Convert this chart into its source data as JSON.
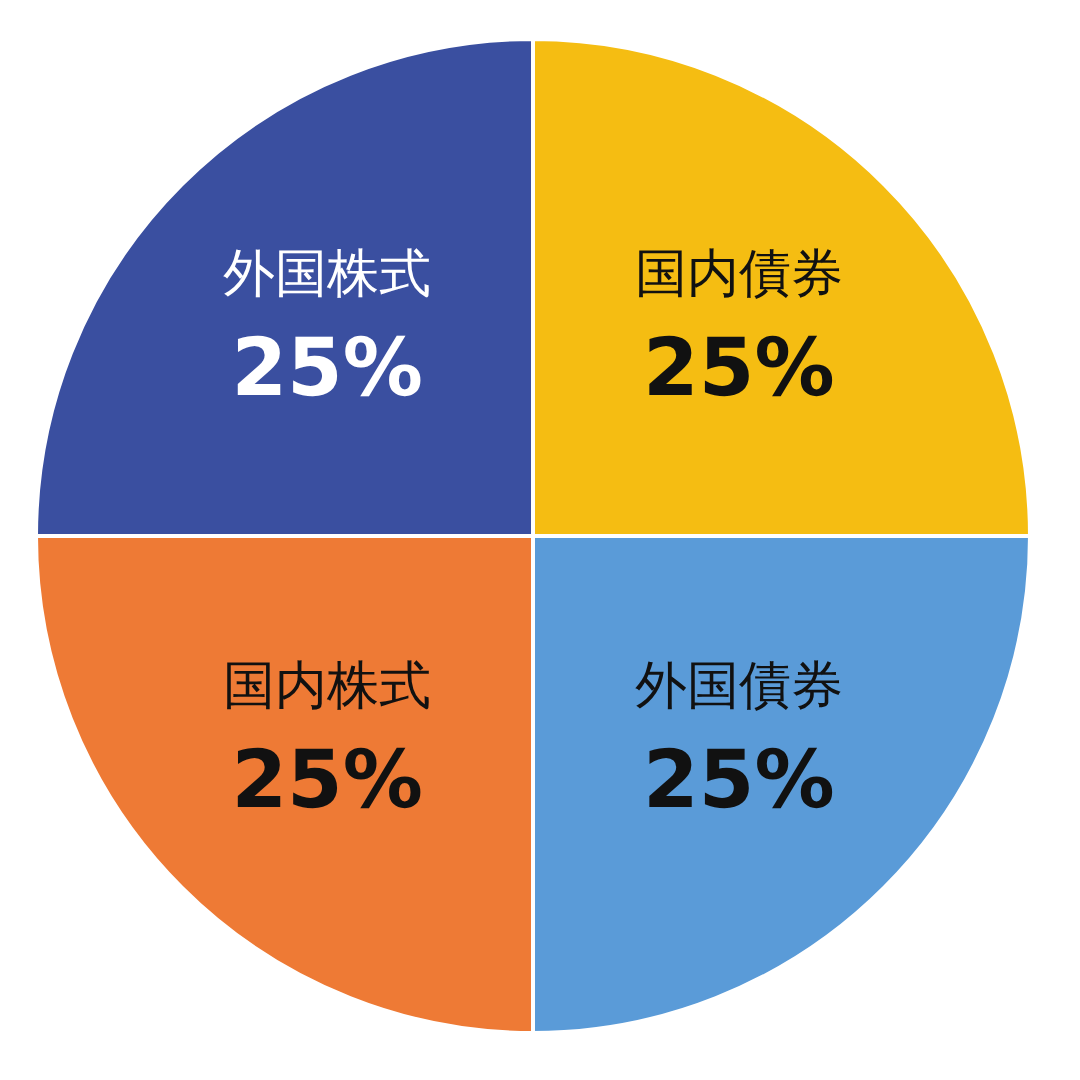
{
  "chart_data": {
    "type": "pie",
    "categories": [
      "国内債券",
      "外国債券",
      "国内株式",
      "外国株式"
    ],
    "values": [
      25,
      25,
      25,
      25
    ],
    "colors": [
      "#f5bd12",
      "#5a9bd8",
      "#ee7a35",
      "#3a4fa0"
    ],
    "value_labels": [
      "25%",
      "25%",
      "25%",
      "25%"
    ],
    "legend": false
  }
}
